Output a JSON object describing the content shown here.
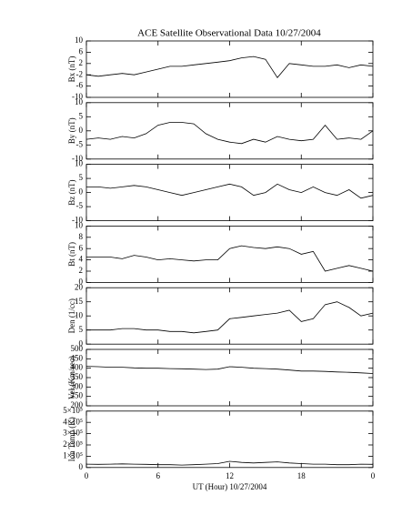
{
  "chart_data": [
    {
      "type": "line",
      "title": "ACE Satellite Observational Data   10/27/2004",
      "ylabel": "Bx (nT)",
      "color": "#000000",
      "xlim": [
        0,
        24
      ],
      "xticks": [
        0,
        6,
        12,
        18,
        {
          "value": 24,
          "label": "0"
        }
      ],
      "ylim": [
        -10,
        10
      ],
      "yticks": [
        -10,
        -6,
        -2,
        2,
        6,
        10
      ],
      "x": [
        0,
        1,
        2,
        3,
        4,
        5,
        6,
        7,
        8,
        9,
        10,
        11,
        12,
        13,
        14,
        15,
        16,
        17,
        18,
        19,
        20,
        21,
        22,
        23,
        24
      ],
      "values": [
        -2,
        -2.5,
        -2,
        -1.5,
        -2,
        -1,
        0,
        1,
        1,
        1.5,
        2,
        2.5,
        3,
        4,
        4.5,
        3.5,
        -3,
        2,
        1.5,
        1,
        1,
        1.5,
        0.5,
        1.5,
        1
      ]
    },
    {
      "type": "line",
      "ylabel": "By (nT)",
      "color": "#000000",
      "xlim": [
        0,
        24
      ],
      "xticks": [
        0,
        6,
        12,
        18,
        {
          "value": 24,
          "label": "0"
        }
      ],
      "ylim": [
        -10,
        10
      ],
      "yticks": [
        -10,
        -5,
        0,
        5,
        10
      ],
      "x": [
        0,
        1,
        2,
        3,
        4,
        5,
        6,
        7,
        8,
        9,
        10,
        11,
        12,
        13,
        14,
        15,
        16,
        17,
        18,
        19,
        20,
        21,
        22,
        23,
        24
      ],
      "values": [
        -3,
        -2.5,
        -3,
        -2,
        -2.5,
        -1,
        2,
        3,
        3,
        2.5,
        -1,
        -3,
        -4,
        -4.5,
        -3,
        -4,
        -2,
        -3,
        -3.5,
        -3,
        2,
        -3,
        -2.5,
        -3,
        0
      ]
    },
    {
      "type": "line",
      "ylabel": "Bz (nT)",
      "color": "#000000",
      "xlim": [
        0,
        24
      ],
      "xticks": [
        0,
        6,
        12,
        18,
        {
          "value": 24,
          "label": "0"
        }
      ],
      "ylim": [
        -10,
        10
      ],
      "yticks": [
        -10,
        -5,
        0,
        5,
        10
      ],
      "x": [
        0,
        1,
        2,
        3,
        4,
        5,
        6,
        7,
        8,
        9,
        10,
        11,
        12,
        13,
        14,
        15,
        16,
        17,
        18,
        19,
        20,
        21,
        22,
        23,
        24
      ],
      "values": [
        2,
        2,
        1.5,
        2,
        2.5,
        2,
        1,
        0,
        -1,
        0,
        1,
        2,
        3,
        2,
        -1,
        0,
        3,
        1,
        0,
        2,
        0,
        -1,
        1,
        -2,
        -1
      ]
    },
    {
      "type": "line",
      "ylabel": "Bt (nT)",
      "color": "#000000",
      "xlim": [
        0,
        24
      ],
      "xticks": [
        0,
        6,
        12,
        18,
        {
          "value": 24,
          "label": "0"
        }
      ],
      "ylim": [
        0,
        10
      ],
      "yticks": [
        0,
        2,
        4,
        6,
        8,
        10
      ],
      "x": [
        0,
        1,
        2,
        3,
        4,
        5,
        6,
        7,
        8,
        9,
        10,
        11,
        12,
        13,
        14,
        15,
        16,
        17,
        18,
        19,
        20,
        21,
        22,
        23,
        24
      ],
      "values": [
        4.5,
        4.5,
        4.5,
        4.2,
        4.8,
        4.5,
        4,
        4.2,
        4,
        3.8,
        4,
        4,
        6,
        6.5,
        6.2,
        6,
        6.3,
        6,
        5,
        5.5,
        2,
        2.5,
        3,
        2.5,
        2
      ]
    },
    {
      "type": "line",
      "ylabel": "Den (1/cc)",
      "color": "#000000",
      "xlim": [
        0,
        24
      ],
      "xticks": [
        0,
        6,
        12,
        18,
        {
          "value": 24,
          "label": "0"
        }
      ],
      "ylim": [
        0,
        20
      ],
      "yticks": [
        0,
        5,
        10,
        15,
        20
      ],
      "x": [
        0,
        1,
        2,
        3,
        4,
        5,
        6,
        7,
        8,
        9,
        10,
        11,
        12,
        13,
        14,
        15,
        16,
        17,
        18,
        19,
        20,
        21,
        22,
        23,
        24
      ],
      "values": [
        5,
        5,
        5,
        5.5,
        5.5,
        5,
        5,
        4.5,
        4.5,
        4,
        4.5,
        5,
        9,
        9.5,
        10,
        10.5,
        11,
        12,
        8,
        9,
        14,
        15,
        13,
        10,
        11
      ]
    },
    {
      "type": "line",
      "ylabel": "Vel (Km/sec)",
      "color": "#000000",
      "xlim": [
        0,
        24
      ],
      "xticks": [
        0,
        6,
        12,
        18,
        {
          "value": 24,
          "label": "0"
        }
      ],
      "ylim": [
        200,
        500
      ],
      "yticks": [
        200,
        250,
        300,
        350,
        400,
        450,
        500
      ],
      "x": [
        0,
        1,
        2,
        3,
        4,
        5,
        6,
        7,
        8,
        9,
        10,
        11,
        12,
        13,
        14,
        15,
        16,
        17,
        18,
        19,
        20,
        21,
        22,
        23,
        24
      ],
      "values": [
        410,
        408,
        405,
        405,
        402,
        400,
        400,
        398,
        397,
        395,
        393,
        395,
        408,
        405,
        400,
        398,
        395,
        390,
        385,
        385,
        383,
        380,
        378,
        375,
        372
      ]
    },
    {
      "type": "line",
      "ylabel": "Ion Temp (K)",
      "xlabel": "UT (Hour)  10/27/2004",
      "color": "#000000",
      "xlim": [
        0,
        24
      ],
      "xticks": [
        0,
        6,
        12,
        18,
        {
          "value": 24,
          "label": "0"
        }
      ],
      "ylim": [
        0,
        500000
      ],
      "yticks": [
        0,
        {
          "value": 100000,
          "label": "1×10⁵"
        },
        {
          "value": 200000,
          "label": "2×10⁵"
        },
        {
          "value": 300000,
          "label": "3×10⁵"
        },
        {
          "value": 400000,
          "label": "4×10⁵"
        },
        {
          "value": 500000,
          "label": "5×10⁵"
        }
      ],
      "x": [
        0,
        1,
        2,
        3,
        4,
        5,
        6,
        7,
        8,
        9,
        10,
        11,
        12,
        13,
        14,
        15,
        16,
        17,
        18,
        19,
        20,
        21,
        22,
        23,
        24
      ],
      "values": [
        30000,
        28000,
        30000,
        32000,
        30000,
        28000,
        25000,
        25000,
        22000,
        25000,
        30000,
        35000,
        55000,
        45000,
        40000,
        45000,
        50000,
        40000,
        35000,
        30000,
        30000,
        25000,
        25000,
        30000,
        28000
      ]
    }
  ]
}
